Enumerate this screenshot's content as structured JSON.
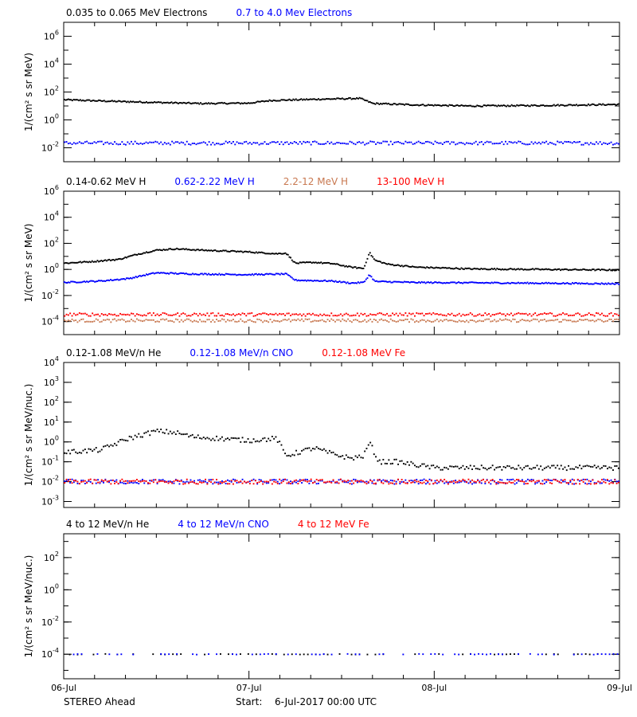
{
  "footer": {
    "spacecraft": "STEREO Ahead",
    "start_label": "Start:",
    "start_value": "6-Jul-2017 00:00 UTC"
  },
  "colors": {
    "black": "#000000",
    "blue": "#0000ff",
    "tan": "#c87850",
    "red": "#ff0000"
  },
  "chart_data": [
    {
      "type": "scatter",
      "ylabel": "1/(cm² s sr MeV)",
      "yscale": "log",
      "ylim": [
        0.001,
        10000000
      ],
      "yticks": [
        {
          "value": 0.01,
          "base": "10",
          "exp": "-2"
        },
        {
          "value": 1,
          "base": "10",
          "exp": "0"
        },
        {
          "value": 100,
          "base": "10",
          "exp": "2"
        },
        {
          "value": 10000,
          "base": "10",
          "exp": "4"
        },
        {
          "value": 1000000,
          "base": "10",
          "exp": "6"
        }
      ],
      "legend": [
        {
          "name": "0.035 to 0.065 MeV Electrons",
          "color": "#000000"
        },
        {
          "name": "0.7 to 4.0 Mev Electrons",
          "color": "#0000ff"
        }
      ],
      "series": [
        {
          "name": "0.035 to 0.065 MeV Electrons",
          "color": "#000000",
          "style": "dense",
          "knots": [
            [
              0,
              28
            ],
            [
              0.25,
              22
            ],
            [
              0.5,
              18
            ],
            [
              0.75,
              15
            ],
            [
              1.0,
              16
            ],
            [
              1.12,
              25
            ],
            [
              1.35,
              30
            ],
            [
              1.6,
              35
            ],
            [
              1.67,
              15
            ],
            [
              1.9,
              12
            ],
            [
              2.2,
              10
            ],
            [
              2.6,
              11
            ],
            [
              3.0,
              13
            ]
          ]
        },
        {
          "name": "0.7 to 4.0 Mev Electrons",
          "color": "#0000ff",
          "style": "scatter",
          "knots": [
            [
              0,
              0.022
            ],
            [
              3.0,
              0.022
            ]
          ]
        }
      ]
    },
    {
      "type": "scatter",
      "ylabel": "1/(cm² s sr MeV)",
      "yscale": "log",
      "ylim": [
        1e-05,
        1000000
      ],
      "yticks": [
        {
          "value": 0.0001,
          "base": "10",
          "exp": "-4"
        },
        {
          "value": 0.01,
          "base": "10",
          "exp": "-2"
        },
        {
          "value": 1,
          "base": "10",
          "exp": "0"
        },
        {
          "value": 100,
          "base": "10",
          "exp": "2"
        },
        {
          "value": 10000,
          "base": "10",
          "exp": "4"
        },
        {
          "value": 1000000,
          "base": "10",
          "exp": "6"
        }
      ],
      "legend": [
        {
          "name": "0.14-0.62 MeV H",
          "color": "#000000"
        },
        {
          "name": "0.62-2.22 MeV H",
          "color": "#0000ff"
        },
        {
          "name": "2.2-12 MeV H",
          "color": "#c87850"
        },
        {
          "name": "13-100 MeV H",
          "color": "#ff0000"
        }
      ],
      "series": [
        {
          "name": "0.14-0.62 MeV H",
          "color": "#000000",
          "style": "dense",
          "knots": [
            [
              0,
              3
            ],
            [
              0.15,
              4
            ],
            [
              0.3,
              6
            ],
            [
              0.4,
              15
            ],
            [
              0.5,
              30
            ],
            [
              0.6,
              38
            ],
            [
              0.75,
              30
            ],
            [
              1.0,
              22
            ],
            [
              1.15,
              16
            ],
            [
              1.2,
              18
            ],
            [
              1.25,
              3
            ],
            [
              1.35,
              3.5
            ],
            [
              1.45,
              2.8
            ],
            [
              1.55,
              1.5
            ],
            [
              1.62,
              1.2
            ],
            [
              1.65,
              20
            ],
            [
              1.68,
              5
            ],
            [
              1.75,
              2.5
            ],
            [
              1.9,
              1.5
            ],
            [
              2.2,
              1.1
            ],
            [
              2.6,
              1.0
            ],
            [
              3.0,
              0.9
            ]
          ]
        },
        {
          "name": "0.62-2.22 MeV H",
          "color": "#0000ff",
          "style": "dense",
          "knots": [
            [
              0,
              0.1
            ],
            [
              0.2,
              0.13
            ],
            [
              0.35,
              0.2
            ],
            [
              0.45,
              0.4
            ],
            [
              0.5,
              0.55
            ],
            [
              0.7,
              0.45
            ],
            [
              1.0,
              0.4
            ],
            [
              1.2,
              0.45
            ],
            [
              1.25,
              0.15
            ],
            [
              1.45,
              0.13
            ],
            [
              1.55,
              0.09
            ],
            [
              1.62,
              0.1
            ],
            [
              1.65,
              0.4
            ],
            [
              1.68,
              0.12
            ],
            [
              1.9,
              0.1
            ],
            [
              2.5,
              0.09
            ],
            [
              3.0,
              0.08
            ]
          ]
        },
        {
          "name": "2.2-12 MeV H",
          "color": "#c87850",
          "style": "scatter",
          "knots": [
            [
              0,
              0.00012
            ],
            [
              3.0,
              0.00012
            ]
          ]
        },
        {
          "name": "13-100 MeV H",
          "color": "#ff0000",
          "style": "scatter",
          "knots": [
            [
              0,
              0.00035
            ],
            [
              3.0,
              0.00035
            ]
          ]
        }
      ]
    },
    {
      "type": "scatter",
      "ylabel": "1/(cm² s sr MeV/nuc.)",
      "yscale": "log",
      "ylim": [
        0.0005,
        10000
      ],
      "yticks": [
        {
          "value": 0.001,
          "base": "10",
          "exp": "-3"
        },
        {
          "value": 0.01,
          "base": "10",
          "exp": "-2"
        },
        {
          "value": 0.1,
          "base": "10",
          "exp": "-1"
        },
        {
          "value": 1,
          "base": "10",
          "exp": "0"
        },
        {
          "value": 10,
          "base": "10",
          "exp": "1"
        },
        {
          "value": 100,
          "base": "10",
          "exp": "2"
        },
        {
          "value": 1000,
          "base": "10",
          "exp": "3"
        },
        {
          "value": 10000,
          "base": "10",
          "exp": "4"
        }
      ],
      "legend": [
        {
          "name": "0.12-1.08 MeV/n He",
          "color": "#000000"
        },
        {
          "name": "0.12-1.08 MeV/n CNO",
          "color": "#0000ff"
        },
        {
          "name": "0.12-1.08 MeV Fe",
          "color": "#ff0000"
        }
      ],
      "series": [
        {
          "name": "0.12-1.08 MeV/n He",
          "color": "#000000",
          "style": "scatter",
          "knots": [
            [
              0,
              0.3
            ],
            [
              0.2,
              0.4
            ],
            [
              0.35,
              1.5
            ],
            [
              0.5,
              3.5
            ],
            [
              0.6,
              3
            ],
            [
              0.7,
              1.8
            ],
            [
              1.0,
              1.2
            ],
            [
              1.15,
              1.5
            ],
            [
              1.2,
              0.2
            ],
            [
              1.35,
              0.5
            ],
            [
              1.45,
              0.25
            ],
            [
              1.55,
              0.15
            ],
            [
              1.62,
              0.2
            ],
            [
              1.65,
              1.0
            ],
            [
              1.7,
              0.1
            ],
            [
              1.8,
              0.1
            ],
            [
              2.0,
              0.05
            ],
            [
              3.0,
              0.05
            ]
          ]
        },
        {
          "name": "0.12-1.08 MeV/n CNO",
          "color": "#0000ff",
          "style": "scatter",
          "knots": [
            [
              0,
              0.01
            ],
            [
              3.0,
              0.01
            ]
          ]
        },
        {
          "name": "0.12-1.08 MeV Fe",
          "color": "#ff0000",
          "style": "scatter",
          "knots": [
            [
              0,
              0.01
            ],
            [
              3.0,
              0.01
            ]
          ]
        }
      ]
    },
    {
      "type": "scatter",
      "ylabel": "1/(cm² s sr MeV/nuc.)",
      "yscale": "log",
      "ylim": [
        3e-06,
        3000
      ],
      "yticks": [
        {
          "value": 0.0001,
          "base": "10",
          "exp": "-4"
        },
        {
          "value": 0.01,
          "base": "10",
          "exp": "-2"
        },
        {
          "value": 1,
          "base": "10",
          "exp": "0"
        },
        {
          "value": 100,
          "base": "10",
          "exp": "2"
        }
      ],
      "legend": [
        {
          "name": "4 to 12 MeV/n He",
          "color": "#000000"
        },
        {
          "name": "4 to 12 MeV/n CNO",
          "color": "#0000ff"
        },
        {
          "name": "4 to 12 MeV Fe",
          "color": "#ff0000"
        }
      ],
      "series": [
        {
          "name": "4 to 12 MeV/n He",
          "color": "#000000",
          "style": "sparse",
          "knots": [
            [
              0,
              0.0001
            ],
            [
              3.0,
              0.0001
            ]
          ]
        },
        {
          "name": "4 to 12 MeV/n CNO",
          "color": "#0000ff",
          "style": "sparse",
          "knots": [
            [
              0,
              0.0001
            ],
            [
              3.0,
              0.0001
            ]
          ]
        }
      ]
    }
  ],
  "x_axis": {
    "range": [
      0,
      3
    ],
    "unit": "days since start",
    "ticks": [
      {
        "value": 0,
        "label": "06-Jul"
      },
      {
        "value": 1,
        "label": "07-Jul"
      },
      {
        "value": 2,
        "label": "08-Jul"
      },
      {
        "value": 3,
        "label": "09-Jul"
      }
    ]
  }
}
